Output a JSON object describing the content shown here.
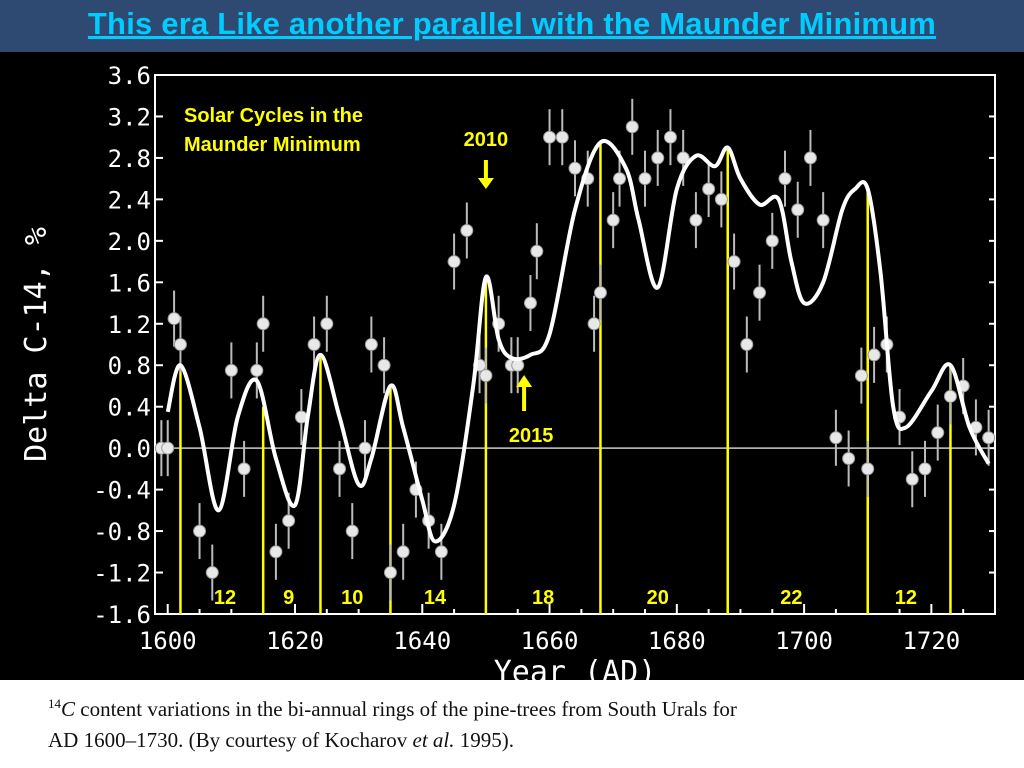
{
  "slide_title": "This era Like another parallel with the Maunder Minimum",
  "caption": {
    "sup": "14",
    "italic_c": "C",
    "line1": " content variations in the bi-annual rings of the pine-trees from South Urals for",
    "line2a": "AD 1600–1730. (By courtesy of Kocharov ",
    "line2_italic": "et al.",
    "line2b": " 1995)."
  },
  "colors": {
    "title": "#00ccff",
    "title_bar": "#2e4a73",
    "annotation": "#ffff00",
    "curve": "#ffffff"
  },
  "chart_data": {
    "type": "line",
    "xlabel": "Year (AD)",
    "ylabel": "Delta C-14, %",
    "xlim": [
      1598,
      1730
    ],
    "ylim": [
      -1.6,
      3.6
    ],
    "x_ticks": [
      "1600",
      "1620",
      "1640",
      "1660",
      "1680",
      "1700",
      "1720"
    ],
    "y_ticks": [
      "3.6",
      "3.2",
      "2.8",
      "2.4",
      "2.0",
      "1.6",
      "1.2",
      "0.8",
      "0.4",
      "0.0",
      "-0.4",
      "-0.8",
      "-1.2",
      "-1.6"
    ],
    "grid": false,
    "inset_label": [
      "Solar Cycles in the",
      "Maunder Minimum"
    ],
    "series": [
      {
        "x": [
          1600,
          1602,
          1605,
          1608,
          1611,
          1614,
          1617,
          1620,
          1622,
          1624,
          1627,
          1630,
          1632,
          1635,
          1637,
          1640,
          1642,
          1645,
          1648,
          1650,
          1652,
          1654,
          1657,
          1660,
          1664,
          1668,
          1672,
          1674,
          1677,
          1680,
          1683,
          1686,
          1688,
          1690,
          1693,
          1696,
          1698,
          1700,
          1703,
          1706,
          1708,
          1710,
          1712,
          1714,
          1716,
          1720,
          1723,
          1726,
          1729
        ],
        "y": [
          0.35,
          0.8,
          0.2,
          -0.6,
          0.3,
          0.65,
          -0.1,
          -0.55,
          0.3,
          0.9,
          0.3,
          -0.35,
          -0.1,
          0.6,
          0.2,
          -0.5,
          -0.9,
          -0.55,
          0.6,
          1.65,
          1.05,
          0.87,
          0.9,
          1.1,
          2.3,
          2.95,
          2.7,
          2.2,
          1.55,
          2.5,
          2.82,
          2.72,
          2.9,
          2.6,
          2.35,
          2.4,
          1.8,
          1.4,
          1.6,
          2.3,
          2.5,
          2.5,
          1.7,
          0.4,
          0.2,
          0.55,
          0.8,
          0.2,
          -0.15
        ]
      },
      {
        "x": [
          1599,
          1600,
          1601,
          1602,
          1605,
          1607,
          1610,
          1612,
          1614,
          1615,
          1617,
          1619,
          1621,
          1623,
          1625,
          1627,
          1629,
          1631,
          1632,
          1634,
          1635,
          1637,
          1639,
          1641,
          1643,
          1645,
          1647,
          1649,
          1650,
          1652,
          1654,
          1655,
          1657,
          1658,
          1660,
          1662,
          1664,
          1666,
          1667,
          1668,
          1670,
          1671,
          1673,
          1675,
          1677,
          1679,
          1681,
          1683,
          1685,
          1687,
          1689,
          1691,
          1693,
          1695,
          1697,
          1699,
          1701,
          1703,
          1705,
          1707,
          1709,
          1710,
          1711,
          1713,
          1715,
          1717,
          1719,
          1721,
          1723,
          1725,
          1727,
          1729
        ],
        "y": [
          0,
          0,
          1.25,
          1,
          -0.8,
          -1.2,
          0.75,
          -0.2,
          0.75,
          1.2,
          -1,
          -0.7,
          0.3,
          1,
          1.2,
          -0.2,
          -0.8,
          0,
          1,
          0.8,
          -1.2,
          -1,
          -0.4,
          -0.7,
          -1,
          1.8,
          2.1,
          0.8,
          0.7,
          1.2,
          0.8,
          0.8,
          1.4,
          1.9,
          3,
          3,
          2.7,
          2.6,
          1.2,
          1.5,
          2.2,
          2.6,
          3.1,
          2.6,
          2.8,
          3,
          2.8,
          2.2,
          2.5,
          2.4,
          1.8,
          1,
          1.5,
          2,
          2.6,
          2.3,
          2.8,
          2.2,
          0.1,
          -0.1,
          0.7,
          -0.2,
          0.9,
          1,
          0.3,
          -0.3,
          -0.2,
          0.15,
          0.5,
          0.6,
          0.2,
          0.1
        ]
      }
    ],
    "cycle_lines_x": [
      1602,
      1615,
      1624,
      1635,
      1650,
      1668,
      1688,
      1710,
      1723
    ],
    "cycle_lengths": [
      {
        "label": "12",
        "x": 1609
      },
      {
        "label": "9",
        "x": 1619
      },
      {
        "label": "10",
        "x": 1629
      },
      {
        "label": "14",
        "x": 1642
      },
      {
        "label": "18",
        "x": 1659
      },
      {
        "label": "20",
        "x": 1677
      },
      {
        "label": "22",
        "x": 1698
      },
      {
        "label": "12",
        "x": 1716
      }
    ],
    "annotations": [
      {
        "label": "2010",
        "x": 1650,
        "direction": "down"
      },
      {
        "label": "2015",
        "x": 1656,
        "direction": "up"
      }
    ]
  }
}
